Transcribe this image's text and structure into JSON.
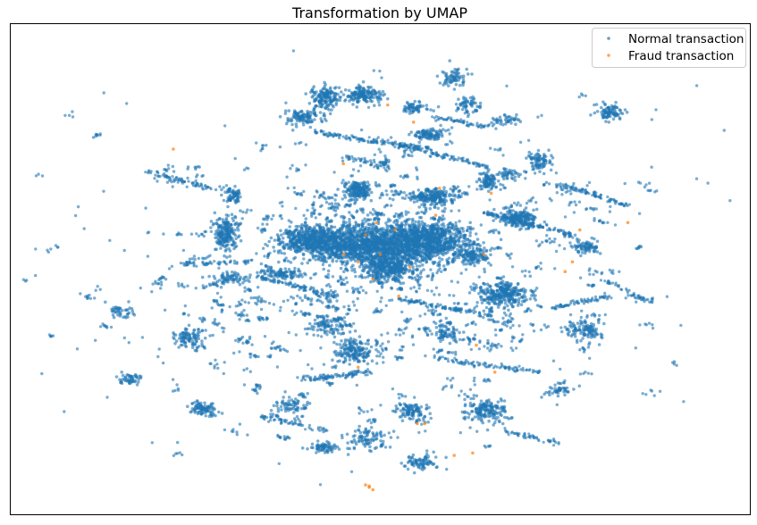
{
  "chart_data": {
    "type": "scatter",
    "title": "Transformation by UMAP",
    "xlabel": "",
    "ylabel": "",
    "xlim": [
      -10,
      10
    ],
    "ylim": [
      -10,
      10
    ],
    "axis_ticks": "hidden",
    "grid": false,
    "legend_placement": "top-right",
    "series": [
      {
        "name": "Normal transaction",
        "color": "#1f77b4",
        "marker": "point",
        "alpha": 0.6,
        "clusters": [
          {
            "x": -0.2,
            "y": 1.0,
            "sx": 1.6,
            "sy": 0.7,
            "n": 1600
          },
          {
            "x": 1.3,
            "y": 1.2,
            "sx": 0.9,
            "sy": 0.6,
            "n": 700
          },
          {
            "x": -1.9,
            "y": 1.2,
            "sx": 0.7,
            "sy": 0.4,
            "n": 450
          },
          {
            "x": 0.2,
            "y": 0.1,
            "sx": 0.6,
            "sy": 0.5,
            "n": 400
          },
          {
            "x": -0.6,
            "y": 3.2,
            "sx": 0.3,
            "sy": 0.3,
            "n": 170
          },
          {
            "x": 1.4,
            "y": 2.9,
            "sx": 0.5,
            "sy": 0.3,
            "n": 200
          },
          {
            "x": 3.7,
            "y": 2.1,
            "sx": 0.4,
            "sy": 0.3,
            "n": 180
          },
          {
            "x": 3.3,
            "y": -1.0,
            "sx": 0.6,
            "sy": 0.4,
            "n": 300
          },
          {
            "x": 2.9,
            "y": 3.6,
            "sx": 0.2,
            "sy": 0.3,
            "n": 90
          },
          {
            "x": 2.5,
            "y": 0.5,
            "sx": 0.4,
            "sy": 0.3,
            "n": 120
          },
          {
            "x": -1.5,
            "y": 7.0,
            "sx": 0.3,
            "sy": 0.4,
            "n": 150
          },
          {
            "x": -0.5,
            "y": 7.1,
            "sx": 0.4,
            "sy": 0.3,
            "n": 160
          },
          {
            "x": -2.1,
            "y": 6.2,
            "sx": 0.4,
            "sy": 0.3,
            "n": 110
          },
          {
            "x": 2.4,
            "y": 6.7,
            "sx": 0.3,
            "sy": 0.3,
            "n": 60
          },
          {
            "x": 1.3,
            "y": 5.5,
            "sx": 0.4,
            "sy": 0.2,
            "n": 100
          },
          {
            "x": 0.9,
            "y": 6.6,
            "sx": 0.3,
            "sy": 0.2,
            "n": 60
          },
          {
            "x": 3.4,
            "y": 6.1,
            "sx": 0.3,
            "sy": 0.2,
            "n": 40
          },
          {
            "x": -4.2,
            "y": 1.5,
            "sx": 0.3,
            "sy": 0.6,
            "n": 200
          },
          {
            "x": -4.0,
            "y": 3.0,
            "sx": 0.2,
            "sy": 0.3,
            "n": 70
          },
          {
            "x": -5.2,
            "y": -2.8,
            "sx": 0.3,
            "sy": 0.3,
            "n": 90
          },
          {
            "x": -4.8,
            "y": -5.7,
            "sx": 0.3,
            "sy": 0.2,
            "n": 80
          },
          {
            "x": -4.1,
            "y": -0.4,
            "sx": 0.5,
            "sy": 0.2,
            "n": 70
          },
          {
            "x": -0.7,
            "y": -3.4,
            "sx": 0.4,
            "sy": 0.4,
            "n": 150
          },
          {
            "x": -1.4,
            "y": -2.3,
            "sx": 0.4,
            "sy": 0.3,
            "n": 80
          },
          {
            "x": -2.6,
            "y": -0.2,
            "sx": 0.5,
            "sy": 0.2,
            "n": 90
          },
          {
            "x": -2.4,
            "y": -5.5,
            "sx": 0.4,
            "sy": 0.3,
            "n": 60
          },
          {
            "x": 0.9,
            "y": -5.8,
            "sx": 0.4,
            "sy": 0.3,
            "n": 90
          },
          {
            "x": 2.9,
            "y": -5.8,
            "sx": 0.5,
            "sy": 0.4,
            "n": 170
          },
          {
            "x": 1.1,
            "y": -7.9,
            "sx": 0.4,
            "sy": 0.3,
            "n": 80
          },
          {
            "x": -1.5,
            "y": -7.3,
            "sx": 0.4,
            "sy": 0.2,
            "n": 70
          },
          {
            "x": 5.5,
            "y": -2.5,
            "sx": 0.4,
            "sy": 0.3,
            "n": 100
          },
          {
            "x": 6.2,
            "y": 6.4,
            "sx": 0.3,
            "sy": 0.3,
            "n": 90
          },
          {
            "x": 4.3,
            "y": 4.4,
            "sx": 0.3,
            "sy": 0.3,
            "n": 80
          },
          {
            "x": 5.6,
            "y": 0.9,
            "sx": 0.3,
            "sy": 0.3,
            "n": 70
          },
          {
            "x": 1.8,
            "y": -2.6,
            "sx": 0.3,
            "sy": 0.3,
            "n": 60
          },
          {
            "x": 3.5,
            "y": 3.9,
            "sx": 0.2,
            "sy": 0.2,
            "n": 40
          },
          {
            "x": 2.0,
            "y": 7.8,
            "sx": 0.3,
            "sy": 0.3,
            "n": 70
          },
          {
            "x": -0.4,
            "y": -6.9,
            "sx": 0.5,
            "sy": 0.4,
            "n": 80
          },
          {
            "x": -6.8,
            "y": -4.5,
            "sx": 0.3,
            "sy": 0.2,
            "n": 50
          },
          {
            "x": -7.0,
            "y": -1.7,
            "sx": 0.3,
            "sy": 0.2,
            "n": 40
          },
          {
            "x": 4.8,
            "y": -5.0,
            "sx": 0.3,
            "sy": 0.2,
            "n": 40
          }
        ],
        "filaments": [
          {
            "x1": -1.8,
            "y1": 5.6,
            "x2": 1.4,
            "y2": 4.9,
            "n": 140
          },
          {
            "x1": 0.4,
            "y1": 5.1,
            "x2": 2.9,
            "y2": 4.2,
            "n": 110
          },
          {
            "x1": 2.8,
            "y1": 2.3,
            "x2": 5.2,
            "y2": 1.4,
            "n": 120
          },
          {
            "x1": 4.8,
            "y1": 3.5,
            "x2": 6.7,
            "y2": 2.6,
            "n": 90
          },
          {
            "x1": 0.5,
            "y1": -1.2,
            "x2": 3.0,
            "y2": -1.9,
            "n": 110
          },
          {
            "x1": -3.3,
            "y1": -0.3,
            "x2": -1.2,
            "y2": -1.1,
            "n": 100
          },
          {
            "x1": -2.1,
            "y1": -4.5,
            "x2": -0.2,
            "y2": -4.2,
            "n": 80
          },
          {
            "x1": 1.4,
            "y1": -3.6,
            "x2": 4.3,
            "y2": -4.2,
            "n": 90
          },
          {
            "x1": -6.3,
            "y1": 4.0,
            "x2": -4.6,
            "y2": 3.3,
            "n": 70
          },
          {
            "x1": -5.4,
            "y1": 0.2,
            "x2": -3.5,
            "y2": 0.3,
            "n": 60
          },
          {
            "x1": 4.6,
            "y1": -1.6,
            "x2": 6.2,
            "y2": -1.1,
            "n": 70
          },
          {
            "x1": 3.3,
            "y1": -6.6,
            "x2": 4.8,
            "y2": -7.1,
            "n": 50
          },
          {
            "x1": -3.2,
            "y1": -6.0,
            "x2": -1.5,
            "y2": -6.6,
            "n": 60
          },
          {
            "x1": 1.4,
            "y1": 6.2,
            "x2": 3.0,
            "y2": 5.8,
            "n": 60
          },
          {
            "x1": -1.0,
            "y1": 4.6,
            "x2": 0.3,
            "y2": 4.1,
            "n": 50
          },
          {
            "x1": 6.0,
            "y1": -0.4,
            "x2": 7.2,
            "y2": -1.3,
            "n": 40
          }
        ],
        "scatter_background": {
          "spread_x": 4.6,
          "spread_y": 4.3,
          "blobs": 380,
          "points_per_blob": 7,
          "isolated": 280
        }
      },
      {
        "name": "Fraud transaction",
        "color": "#ff7f0e",
        "marker": "point",
        "alpha": 0.7,
        "points": [
          [
            -1.0,
            4.3
          ],
          [
            0.2,
            6.7
          ],
          [
            0.9,
            6.0
          ],
          [
            -5.6,
            4.9
          ],
          [
            -0.4,
            1.4
          ],
          [
            0.0,
            0.6
          ],
          [
            -0.6,
            0.3
          ],
          [
            0.4,
            1.6
          ],
          [
            0.8,
            0.1
          ],
          [
            -0.2,
            -0.4
          ],
          [
            0.5,
            -1.1
          ],
          [
            -1.0,
            0.6
          ],
          [
            1.5,
            2.2
          ],
          [
            1.6,
            3.3
          ],
          [
            3.0,
            3.1
          ],
          [
            2.8,
            0.6
          ],
          [
            5.0,
            -0.1
          ],
          [
            5.2,
            0.3
          ],
          [
            6.7,
            1.9
          ],
          [
            5.4,
            1.6
          ],
          [
            2.6,
            -3.1
          ],
          [
            3.1,
            -4.2
          ],
          [
            1.0,
            -6.3
          ],
          [
            2.0,
            -7.6
          ],
          [
            2.5,
            -7.5
          ],
          [
            -0.3,
            -8.9
          ],
          [
            -0.4,
            -8.8
          ],
          [
            -0.2,
            -9.0
          ],
          [
            -0.3,
            -8.85
          ],
          [
            -0.6,
            -4.0
          ],
          [
            1.2,
            -6.3
          ],
          [
            -0.1,
            1.9
          ]
        ]
      }
    ]
  }
}
